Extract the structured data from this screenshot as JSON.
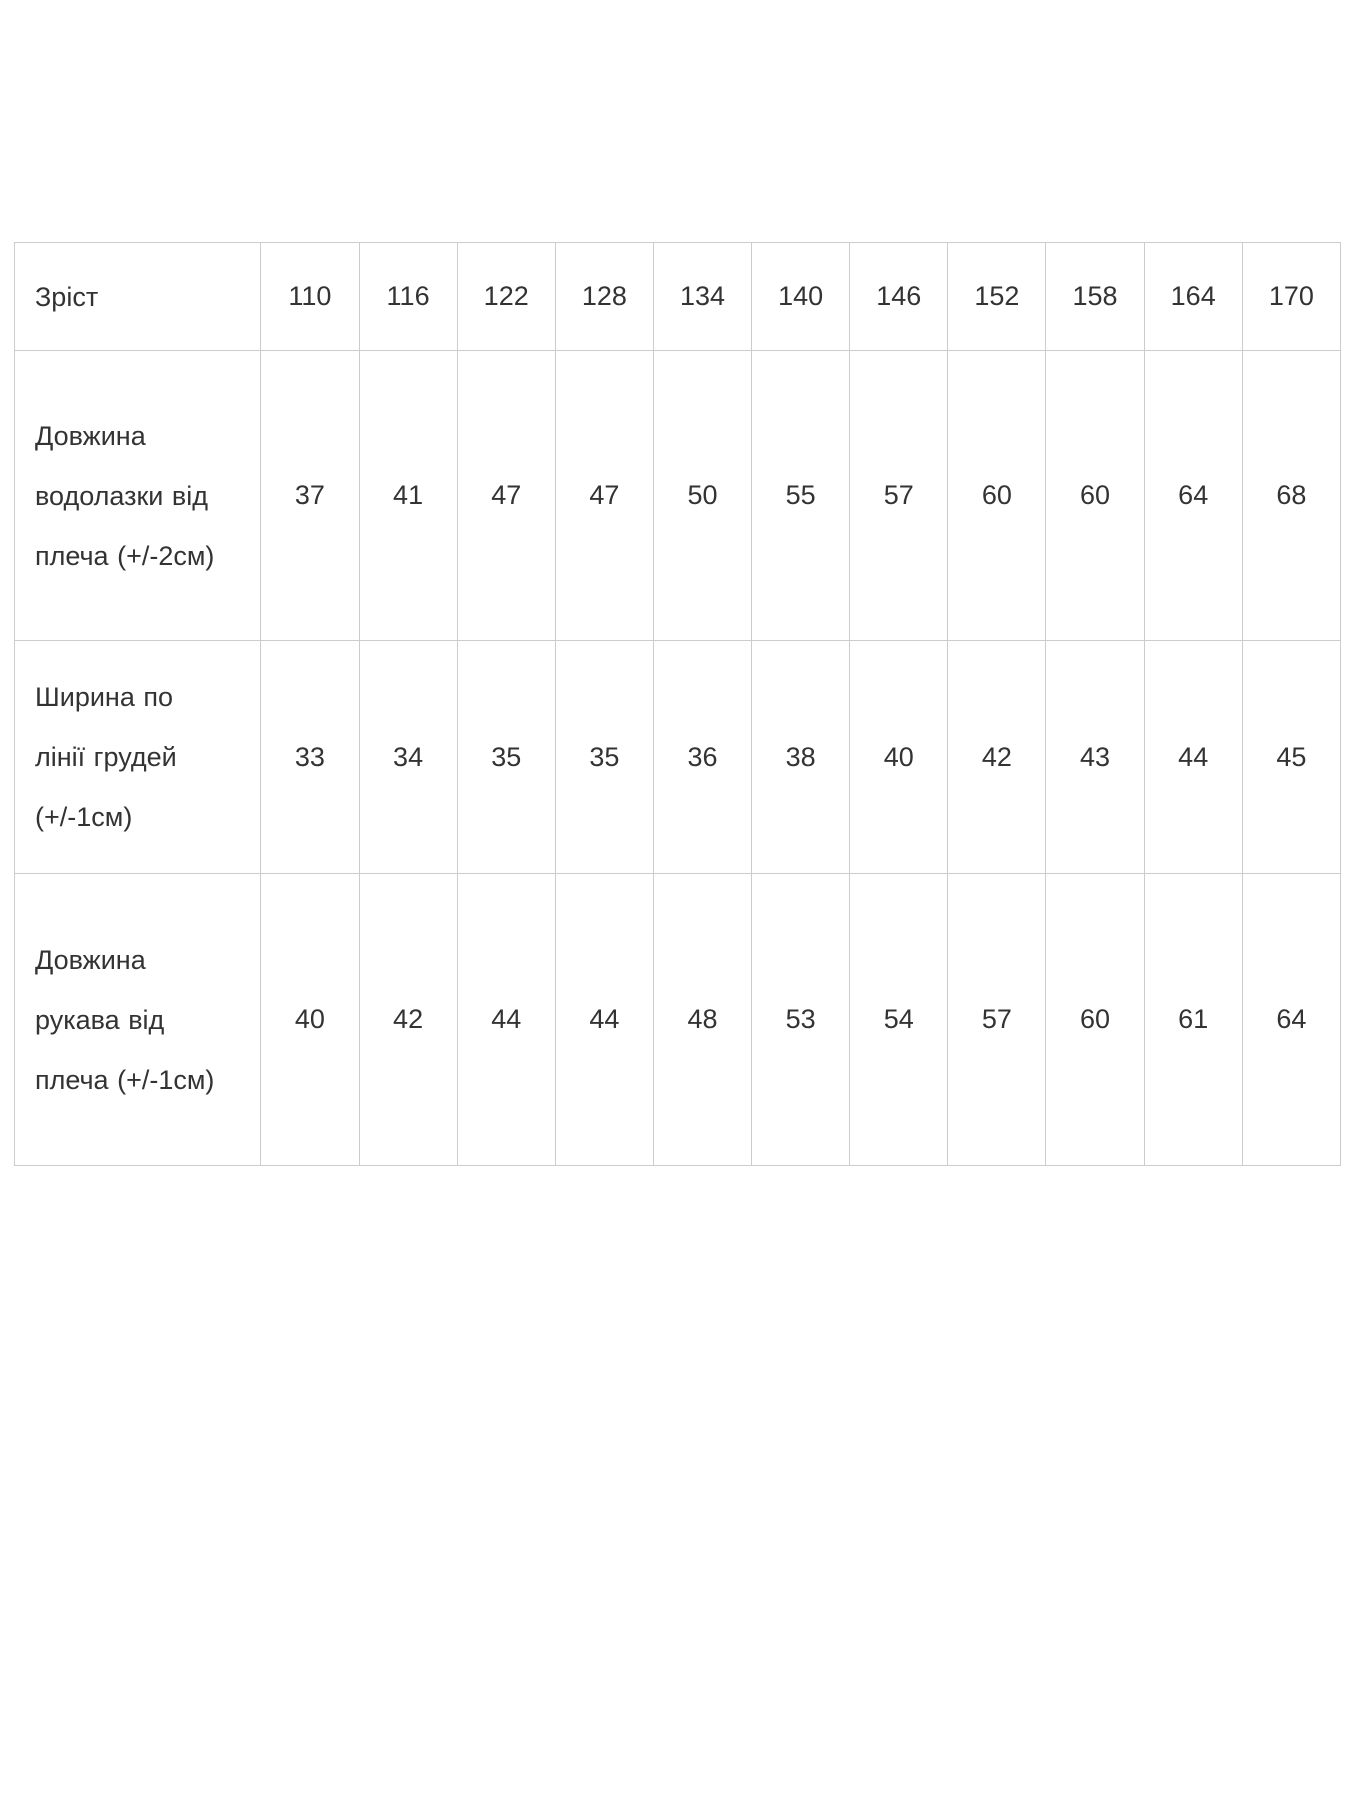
{
  "size_table": {
    "header": {
      "label": "Зріст",
      "sizes": [
        "110",
        "116",
        "122",
        "128",
        "134",
        "140",
        "146",
        "152",
        "158",
        "164",
        "170"
      ]
    },
    "rows": [
      {
        "label": "Довжина водолазки від плеча (+/-2см)",
        "values": [
          "37",
          "41",
          "47",
          "47",
          "50",
          "55",
          "57",
          "60",
          "60",
          "64",
          "68"
        ]
      },
      {
        "label": "Ширина по лінії грудей (+/-1см)",
        "values": [
          "33",
          "34",
          "35",
          "35",
          "36",
          "38",
          "40",
          "42",
          "43",
          "44",
          "45"
        ]
      },
      {
        "label": "Довжина рукава від плеча (+/-1см)",
        "values": [
          "40",
          "42",
          "44",
          "44",
          "48",
          "53",
          "54",
          "57",
          "60",
          "61",
          "64"
        ]
      }
    ],
    "colors": {
      "border": "#cccccc",
      "text": "#333333",
      "background": "#ffffff"
    }
  }
}
